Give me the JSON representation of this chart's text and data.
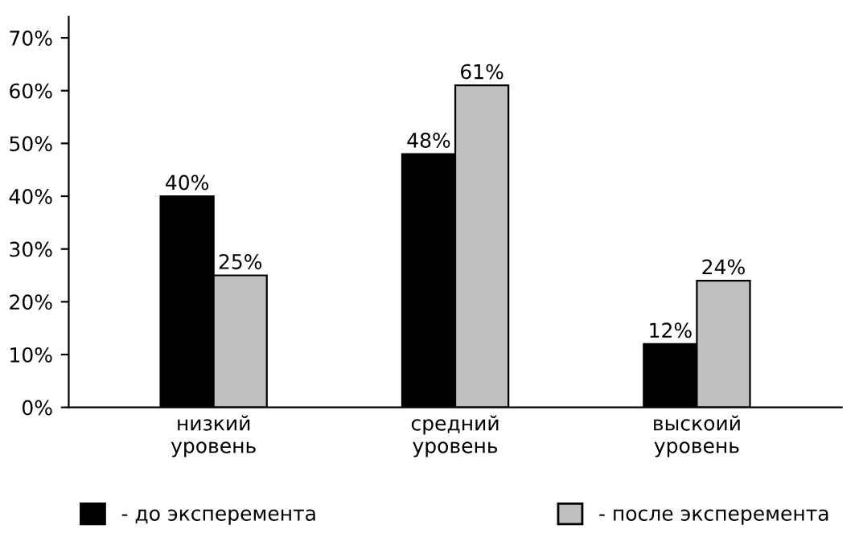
{
  "chart_data": {
    "type": "bar",
    "categories": [
      "низкий\nуровень",
      "средний\nуровень",
      "выскоий\nуровень"
    ],
    "series": [
      {
        "name": "- до эксперемента",
        "color": "#000000",
        "values": [
          40,
          48,
          12
        ],
        "value_labels": [
          "40%",
          "48%",
          "12%"
        ]
      },
      {
        "name": "- после эксперемента",
        "color": "#c0c0c0",
        "values": [
          25,
          61,
          24
        ],
        "value_labels": [
          "25%",
          "61%",
          "24%"
        ]
      }
    ],
    "ylim": [
      0,
      74
    ],
    "yticks": [
      {
        "value": 0,
        "label": "0%"
      },
      {
        "value": 10,
        "label": "10%"
      },
      {
        "value": 20,
        "label": "20%"
      },
      {
        "value": 30,
        "label": "30%"
      },
      {
        "value": 40,
        "label": "40%"
      },
      {
        "value": 50,
        "label": "50%"
      },
      {
        "value": 60,
        "label": "60%"
      },
      {
        "value": 70,
        "label": "70%"
      }
    ],
    "grid": false,
    "legend": "bottom"
  }
}
